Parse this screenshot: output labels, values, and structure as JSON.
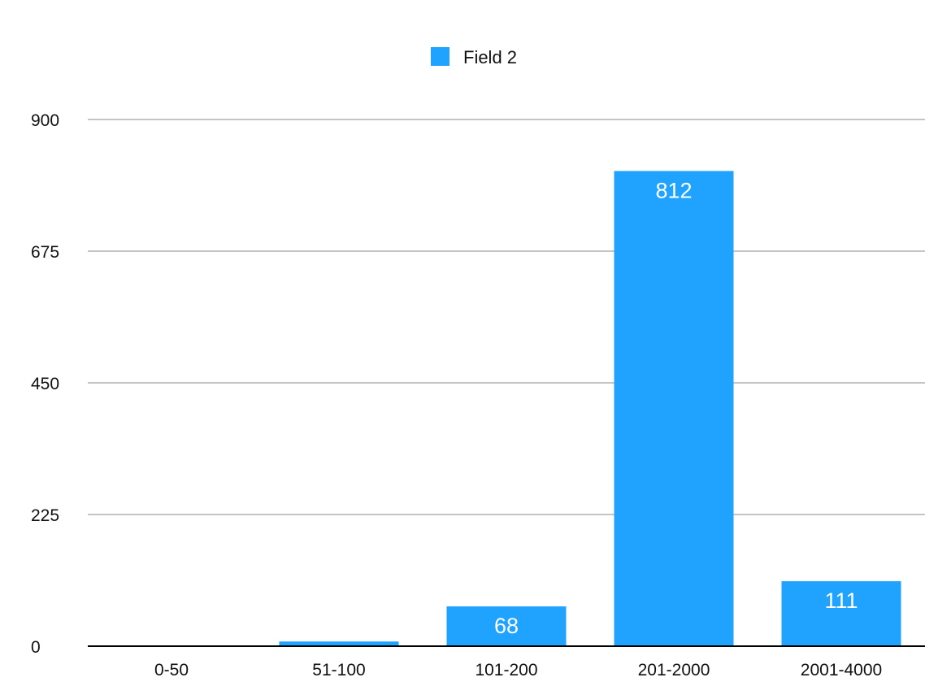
{
  "chart_data": {
    "type": "bar",
    "categories": [
      "0-50",
      "51-100",
      "101-200",
      "201-2000",
      "2001-4000"
    ],
    "series": [
      {
        "name": "Field 2",
        "values": [
          0,
          8,
          68,
          812,
          111
        ],
        "data_labels": [
          "",
          "",
          "68",
          "812",
          "111"
        ],
        "color": "#1fa3ff"
      }
    ],
    "ylim": [
      0,
      900
    ],
    "yticks": [
      0,
      225,
      450,
      675,
      900
    ],
    "grid": true,
    "legend_position": "top-center",
    "gridline_color": "#c4c4c4",
    "axis_color": "#000000"
  }
}
